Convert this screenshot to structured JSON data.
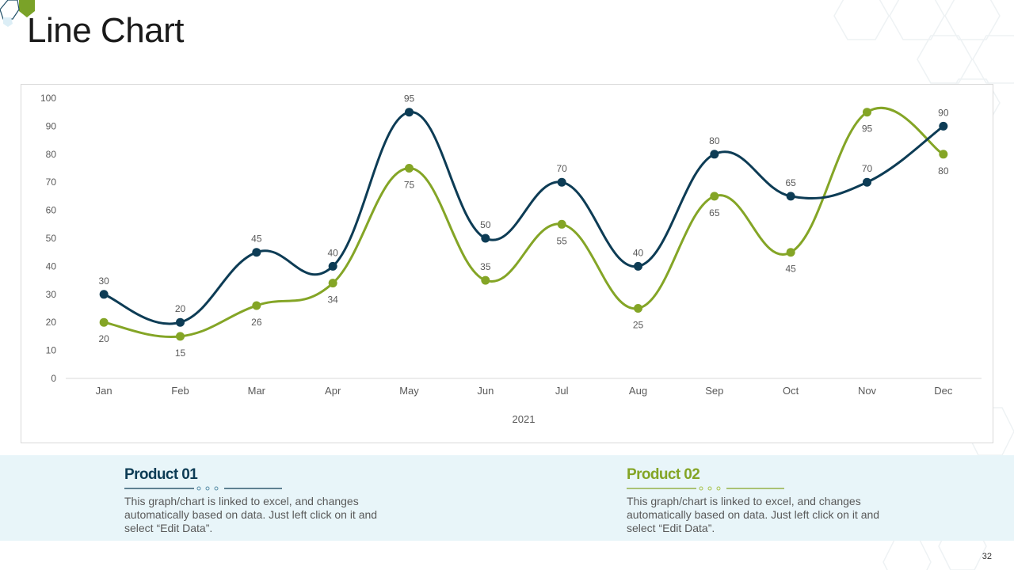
{
  "slide": {
    "title": "Line Chart",
    "page_number": "32"
  },
  "colors": {
    "product1": "#0d3c55",
    "product2": "#84a526",
    "grid": "#e6e6e6",
    "axis_text": "#595959"
  },
  "chart_data": {
    "type": "line",
    "smooth": true,
    "categories": [
      "Jan",
      "Feb",
      "Mar",
      "Apr",
      "May",
      "Jun",
      "Jul",
      "Aug",
      "Sep",
      "Oct",
      "Nov",
      "Dec"
    ],
    "series": [
      {
        "name": "Product 01",
        "color": "#0d3c55",
        "values": [
          30,
          20,
          45,
          40,
          95,
          50,
          70,
          40,
          80,
          65,
          70,
          90
        ],
        "label_positions": [
          "above",
          "above",
          "above",
          "above",
          "above",
          "above",
          "above",
          "above",
          "above",
          "above",
          "above",
          "above"
        ]
      },
      {
        "name": "Product 02",
        "color": "#84a526",
        "values": [
          20,
          15,
          26,
          34,
          75,
          35,
          55,
          25,
          65,
          45,
          95,
          80
        ],
        "label_positions": [
          "below",
          "below",
          "below",
          "below",
          "below",
          "above",
          "below",
          "below",
          "below",
          "below",
          "below",
          "below"
        ]
      }
    ],
    "yticks": [
      "0",
      "10",
      "20",
      "30",
      "40",
      "50",
      "60",
      "70",
      "80",
      "90",
      "100"
    ],
    "ylim": [
      0,
      100
    ],
    "xlabel": "2021",
    "ylabel": "",
    "grid": false,
    "legend": "none"
  },
  "products": [
    {
      "title_word": "Product",
      "title_number": "01",
      "description": "This graph/chart is linked to excel, and changes automatically based on data. Just left click on it and select “Edit Data”.",
      "color": "#0d3c55"
    },
    {
      "title_word": "Product",
      "title_number": "02",
      "description": "This graph/chart is linked to excel, and changes automatically based on data. Just left click on it and select “Edit Data”.",
      "color": "#84a526"
    }
  ]
}
